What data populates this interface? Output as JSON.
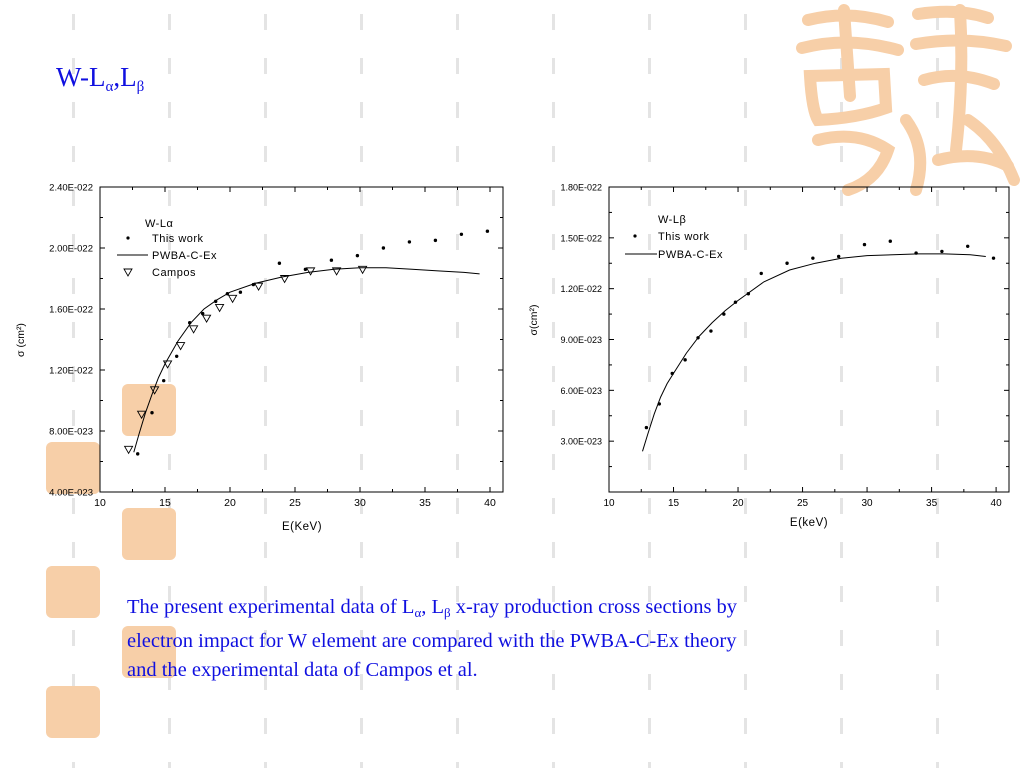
{
  "slide": {
    "title_main": "W-L",
    "title_sub1": "α",
    "title_comma": ",L",
    "title_sub2": "β"
  },
  "caption": {
    "line1_a": "The present experimental data of L",
    "line1_sub1": "α",
    "line1_b": ", L",
    "line1_sub2": "β",
    "line1_c": " x-ray production cross sections by",
    "line2": "electron impact for W element are compared with the PWBA-C-Ex theory",
    "line3": "and the experimental data of Campos et al."
  },
  "colors": {
    "title": "#1010e0",
    "decoration": "#f7cfa8",
    "dash": "#e4e4e4"
  },
  "chart_data": [
    {
      "type": "scatter",
      "legend_title": "W-Lα",
      "xlabel": "E(KeV)",
      "ylabel": "σ (cm²)",
      "xlim": [
        10,
        41
      ],
      "ylim": [
        4e-23,
        2.4e-22
      ],
      "x_ticks": [
        10,
        15,
        20,
        25,
        30,
        35,
        40
      ],
      "x_tick_labels": [
        "10",
        "15",
        "20",
        "25",
        "30",
        "35",
        "40"
      ],
      "y_ticks": [
        4e-23,
        8e-23,
        1.2e-22,
        1.6e-22,
        2e-22,
        2.4e-22
      ],
      "y_tick_labels": [
        "4.00E-023",
        "8.00E-023",
        "1.20E-022",
        "1.60E-022",
        "2.00E-022",
        "2.40E-022"
      ],
      "legend_position": "top-left",
      "series": [
        {
          "name": "This work",
          "marker": "dot",
          "x": [
            12.9,
            14.0,
            14.9,
            15.9,
            16.9,
            17.9,
            18.9,
            19.8,
            20.8,
            21.8,
            23.8,
            25.8,
            27.8,
            29.8,
            31.8,
            33.8,
            35.8,
            37.8,
            39.8
          ],
          "y": [
            6.5e-23,
            9.2e-23,
            1.13e-22,
            1.29e-22,
            1.51e-22,
            1.57e-22,
            1.65e-22,
            1.7e-22,
            1.71e-22,
            1.76e-22,
            1.9e-22,
            1.86e-22,
            1.92e-22,
            1.95e-22,
            2e-22,
            2.04e-22,
            2.05e-22,
            2.09e-22,
            2.11e-22
          ]
        },
        {
          "name": "PWBA-C-Ex",
          "marker": "line",
          "x": [
            12.6,
            13.0,
            13.5,
            14.0,
            14.5,
            15.0,
            16.0,
            17.0,
            18.0,
            19.0,
            20.0,
            22.0,
            24.0,
            26.0,
            28.0,
            30.0,
            32.0,
            34.0,
            36.0,
            38.0,
            39.2
          ],
          "y": [
            6.6e-23,
            7.8e-23,
            9.2e-23,
            1.04e-22,
            1.15e-22,
            1.24e-22,
            1.39e-22,
            1.51e-22,
            1.6e-22,
            1.66e-22,
            1.71e-22,
            1.77e-22,
            1.81e-22,
            1.84e-22,
            1.86e-22,
            1.87e-22,
            1.87e-22,
            1.86e-22,
            1.85e-22,
            1.84e-22,
            1.83e-22
          ]
        },
        {
          "name": "Campos",
          "marker": "triangle-down",
          "x": [
            12.2,
            13.2,
            14.2,
            15.2,
            16.2,
            17.2,
            18.2,
            19.2,
            20.2,
            22.2,
            24.2,
            26.2,
            28.2,
            30.2
          ],
          "y": [
            6.8e-23,
            9.1e-23,
            1.07e-22,
            1.24e-22,
            1.36e-22,
            1.47e-22,
            1.54e-22,
            1.61e-22,
            1.67e-22,
            1.75e-22,
            1.8e-22,
            1.85e-22,
            1.85e-22,
            1.86e-22
          ]
        }
      ]
    },
    {
      "type": "scatter",
      "legend_title": "W-Lβ",
      "xlabel": "E(keV)",
      "ylabel": "σ(cm²)",
      "xlim": [
        10,
        41
      ],
      "ylim": [
        0,
        1.8e-22
      ],
      "x_ticks": [
        10,
        15,
        20,
        25,
        30,
        35,
        40
      ],
      "x_tick_labels": [
        "10",
        "15",
        "20",
        "25",
        "30",
        "35",
        "40"
      ],
      "y_ticks": [
        3e-23,
        6e-23,
        9e-23,
        1.2e-22,
        1.5e-22,
        1.8e-22
      ],
      "y_tick_labels": [
        "3.00E-023",
        "6.00E-023",
        "9.00E-023",
        "1.20E-022",
        "1.50E-022",
        "1.80E-022"
      ],
      "legend_position": "top-left",
      "series": [
        {
          "name": "This work",
          "marker": "dot",
          "x": [
            12.9,
            13.9,
            14.9,
            15.9,
            16.9,
            17.9,
            18.9,
            19.8,
            20.8,
            21.8,
            23.8,
            25.8,
            27.8,
            29.8,
            31.8,
            33.8,
            35.8,
            37.8,
            39.8
          ],
          "y": [
            3.8e-23,
            5.2e-23,
            7e-23,
            7.8e-23,
            9.1e-23,
            9.5e-23,
            1.05e-22,
            1.12e-22,
            1.17e-22,
            1.29e-22,
            1.35e-22,
            1.38e-22,
            1.39e-22,
            1.46e-22,
            1.48e-22,
            1.41e-22,
            1.42e-22,
            1.45e-22,
            1.38e-22
          ]
        },
        {
          "name": "PWBA-C-Ex",
          "marker": "line",
          "x": [
            12.6,
            13.0,
            13.5,
            14.0,
            14.5,
            15.0,
            16.0,
            17.0,
            18.0,
            19.0,
            20.0,
            22.0,
            24.0,
            26.0,
            28.0,
            30.0,
            32.0,
            34.0,
            36.0,
            38.0,
            39.2
          ],
          "y": [
            2.4e-23,
            3.4e-23,
            4.6e-23,
            5.6e-23,
            6.4e-23,
            7e-23,
            8.2e-23,
            9.2e-23,
            1e-22,
            1.07e-22,
            1.13e-22,
            1.24e-22,
            1.31e-22,
            1.35e-22,
            1.38e-22,
            1.395e-22,
            1.4e-22,
            1.405e-22,
            1.405e-22,
            1.4e-22,
            1.39e-22
          ]
        }
      ]
    }
  ]
}
